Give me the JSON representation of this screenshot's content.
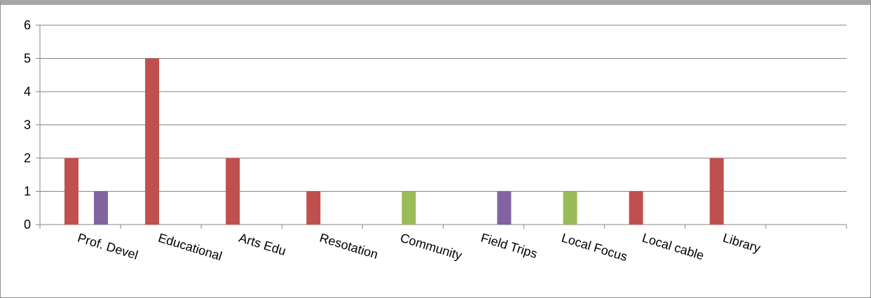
{
  "chart_data": {
    "type": "bar",
    "categories": [
      "Prof. Devel",
      "Educational",
      "Arts Edu",
      "Resotation",
      "Community",
      "Field Trips",
      "Local Focus",
      "Local cable",
      "Library",
      ""
    ],
    "series": [
      {
        "color": "#c0504d",
        "values": [
          2,
          5,
          2,
          1,
          0,
          0,
          0,
          1,
          2,
          0
        ]
      },
      {
        "color": "#9bbb59",
        "values": [
          0,
          0,
          0,
          0,
          1,
          0,
          1,
          0,
          0,
          0
        ]
      },
      {
        "color": "#8064a2",
        "values": [
          1,
          0,
          0,
          0,
          0,
          1,
          0,
          0,
          0,
          0
        ]
      }
    ],
    "y_ticks": [
      "0",
      "1",
      "2",
      "3",
      "4",
      "5",
      "6"
    ],
    "ylim": [
      0,
      6
    ],
    "grid": true,
    "legend": "none"
  }
}
